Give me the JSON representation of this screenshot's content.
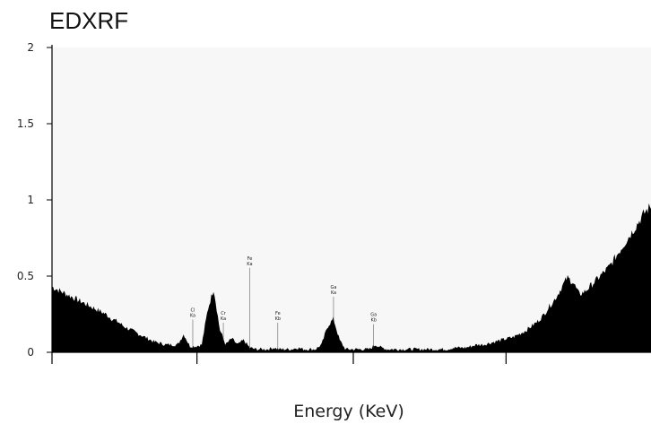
{
  "chart_data": {
    "type": "area",
    "title": "EDXRF",
    "xlabel": "Energy (KeV)",
    "ylabel": "",
    "ylim": [
      0,
      2
    ],
    "yticks": [
      "0",
      "0.5",
      "1",
      "1.5",
      "2"
    ],
    "x": [
      0,
      0.01,
      0.02,
      0.03,
      0.04,
      0.05,
      0.06,
      0.07,
      0.08,
      0.09,
      0.1,
      0.11,
      0.12,
      0.13,
      0.14,
      0.15,
      0.16,
      0.17,
      0.18,
      0.19,
      0.2,
      0.21,
      0.22,
      0.23,
      0.24,
      0.25,
      0.26,
      0.27,
      0.28,
      0.29,
      0.3,
      0.31,
      0.32,
      0.33,
      0.34,
      0.35,
      0.36,
      0.37,
      0.38,
      0.39,
      0.4,
      0.41,
      0.42,
      0.43,
      0.44,
      0.45,
      0.46,
      0.47,
      0.48,
      0.49,
      0.5,
      0.51,
      0.52,
      0.53,
      0.54,
      0.55,
      0.56,
      0.57,
      0.58,
      0.59,
      0.6,
      0.61,
      0.62,
      0.63,
      0.64,
      0.65,
      0.66,
      0.67,
      0.68,
      0.69,
      0.7,
      0.71,
      0.72,
      0.73,
      0.74,
      0.75,
      0.76,
      0.77,
      0.78,
      0.79,
      0.8,
      0.81,
      0.82,
      0.83,
      0.84,
      0.85,
      0.86,
      0.87,
      0.88,
      0.89,
      0.9,
      0.91,
      0.92,
      0.93,
      0.94,
      0.95,
      0.96,
      0.97,
      0.98,
      0.99,
      1
    ],
    "series": [
      {
        "values": [
          0.43,
          0.41,
          0.39,
          0.37,
          0.35,
          0.33,
          0.31,
          0.29,
          0.27,
          0.25,
          0.22,
          0.2,
          0.17,
          0.15,
          0.13,
          0.11,
          0.09,
          0.07,
          0.06,
          0.05,
          0.05,
          0.05,
          0.12,
          0.04,
          0.04,
          0.05,
          0.28,
          0.42,
          0.15,
          0.05,
          0.09,
          0.05,
          0.08,
          0.03,
          0.02,
          0.02,
          0.02,
          0.03,
          0.02,
          0.02,
          0.02,
          0.03,
          0.02,
          0.02,
          0.02,
          0.05,
          0.17,
          0.22,
          0.08,
          0.02,
          0.02,
          0.02,
          0.02,
          0.02,
          0.05,
          0.03,
          0.02,
          0.02,
          0.02,
          0.02,
          0.02,
          0.02,
          0.02,
          0.02,
          0.02,
          0.02,
          0.02,
          0.03,
          0.03,
          0.03,
          0.04,
          0.05,
          0.05,
          0.06,
          0.07,
          0.08,
          0.09,
          0.1,
          0.12,
          0.14,
          0.17,
          0.2,
          0.24,
          0.3,
          0.35,
          0.42,
          0.49,
          0.46,
          0.38,
          0.4,
          0.44,
          0.48,
          0.52,
          0.56,
          0.62,
          0.68,
          0.74,
          0.8,
          0.86,
          0.92,
          0.96
        ]
      }
    ],
    "peaks": [
      {
        "label": [
          "Cl",
          "Ka"
        ],
        "x": 0.235,
        "label_y": 0.22
      },
      {
        "label": [
          "Cr",
          "Ka"
        ],
        "x": 0.286,
        "label_y": 0.2
      },
      {
        "label": [
          "Fe",
          "Ka"
        ],
        "x": 0.33,
        "label_y": 0.56
      },
      {
        "label": [
          "Fe",
          "Kb"
        ],
        "x": 0.377,
        "label_y": 0.2
      },
      {
        "label": [
          "Ga",
          "Ka"
        ],
        "x": 0.47,
        "label_y": 0.37
      },
      {
        "label": [
          "Ga",
          "Kb"
        ],
        "x": 0.537,
        "label_y": 0.19
      }
    ],
    "fill_color": "#000000",
    "plot_background": "#f7f7f7",
    "grid": false,
    "legend": "none"
  }
}
